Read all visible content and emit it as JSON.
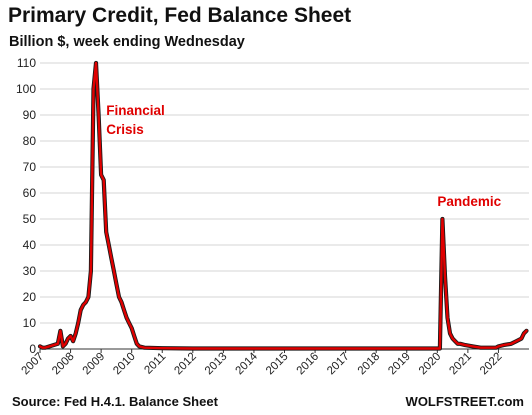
{
  "chart_data": {
    "type": "line",
    "title": "Primary  Credit, Fed Balance Sheet",
    "subtitle": "Billion $, week ending Wednesday",
    "xlabel": "",
    "ylabel": "",
    "ylim": [
      0,
      110
    ],
    "xlim": [
      "2007-01",
      "2023-01"
    ],
    "y_ticks": [
      0,
      10,
      20,
      30,
      40,
      50,
      60,
      70,
      80,
      90,
      100,
      110
    ],
    "x_ticks": [
      "2007",
      "2008",
      "2009",
      "2010",
      "2011",
      "2012",
      "2013",
      "2014",
      "2015",
      "2016",
      "2017",
      "2018",
      "2019",
      "2020",
      "2021",
      "2022"
    ],
    "grid": "horizontal",
    "series": [
      {
        "color": "#e00000",
        "x": [
          "2007-01",
          "2007-02",
          "2007-03",
          "2007-08",
          "2007-09",
          "2007-10",
          "2007-11",
          "2007-12",
          "2008-01",
          "2008-02",
          "2008-03",
          "2008-04",
          "2008-05",
          "2008-06",
          "2008-07",
          "2008-08",
          "2008-09",
          "2008-10",
          "2008-11",
          "2008-12",
          "2009-01",
          "2009-02",
          "2009-03",
          "2009-04",
          "2009-05",
          "2009-06",
          "2009-07",
          "2009-08",
          "2009-09",
          "2009-10",
          "2009-11",
          "2009-12",
          "2010-01",
          "2010-02",
          "2010-03",
          "2010-04",
          "2010-06",
          "2011-01",
          "2012-01",
          "2013-01",
          "2014-01",
          "2015-01",
          "2016-01",
          "2017-01",
          "2018-01",
          "2019-01",
          "2020-01",
          "2020-02",
          "2020-03",
          "2020-04",
          "2020-05",
          "2020-06",
          "2020-07",
          "2020-08",
          "2020-09",
          "2020-10",
          "2020-12",
          "2021-03",
          "2021-06",
          "2021-09",
          "2021-12",
          "2022-01",
          "2022-03",
          "2022-06",
          "2022-08",
          "2022-10",
          "2022-11",
          "2022-12"
        ],
        "values": [
          1,
          0.5,
          0.5,
          2,
          7,
          1,
          2,
          4,
          5,
          3,
          6,
          10,
          15,
          17,
          18,
          20,
          30,
          100,
          110,
          90,
          67,
          65,
          45,
          40,
          35,
          30,
          25,
          20,
          18,
          15,
          12,
          10,
          8,
          5,
          2,
          1,
          0.5,
          0.3,
          0.2,
          0.2,
          0.2,
          0.2,
          0.2,
          0.2,
          0.2,
          0.2,
          0.2,
          0.2,
          50,
          28,
          12,
          6,
          4,
          3,
          2,
          2,
          1.5,
          1,
          0.5,
          0.5,
          0.5,
          1,
          1.5,
          2,
          3,
          4,
          6,
          7
        ]
      }
    ],
    "annotations": [
      {
        "lines": [
          "Financial",
          "Crisis"
        ],
        "x": "2009-03",
        "y": 90
      },
      {
        "lines": [
          "Pandemic"
        ],
        "x": "2020-01",
        "y": 55
      }
    ]
  },
  "footer": {
    "source": "Source: Fed H.4.1. Balance Sheet",
    "brand": "WOLFSTREET.com"
  }
}
